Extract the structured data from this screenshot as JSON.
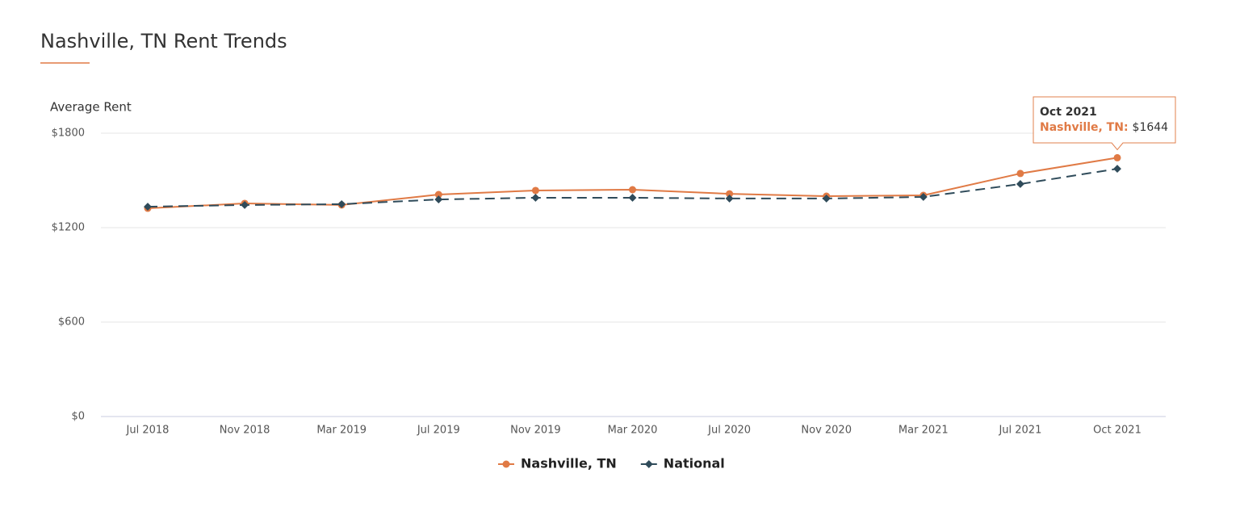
{
  "chart_data": {
    "type": "line",
    "title": "Nashville, TN Rent Trends",
    "y_label": "Average Rent",
    "categories": [
      "Jul 2018",
      "Nov 2018",
      "Mar 2019",
      "Jul 2019",
      "Nov 2019",
      "Mar 2020",
      "Jul 2020",
      "Nov 2020",
      "Mar 2021",
      "Jul 2021",
      "Oct 2021"
    ],
    "series": [
      {
        "name": "Nashville, TN",
        "color": "#e07a45",
        "marker": "circle",
        "dash": false,
        "values": [
          1323,
          1354,
          1344,
          1410,
          1436,
          1441,
          1415,
          1400,
          1405,
          1544,
          1644
        ]
      },
      {
        "name": "National",
        "color": "#2f4b5a",
        "marker": "diamond",
        "dash": true,
        "values": [
          1333,
          1344,
          1349,
          1379,
          1390,
          1390,
          1385,
          1385,
          1395,
          1477,
          1574
        ]
      }
    ],
    "ylim": [
      0,
      1800
    ],
    "yticks": [
      {
        "value": 0,
        "label": "$0"
      },
      {
        "value": 600,
        "label": "$600"
      },
      {
        "value": 1200,
        "label": "$1200"
      },
      {
        "value": 1800,
        "label": "$1800"
      }
    ],
    "grid": true,
    "legend": "bottom",
    "tooltip": {
      "label": "Nashville, TN:",
      "value_label": "$1644"
    }
  }
}
